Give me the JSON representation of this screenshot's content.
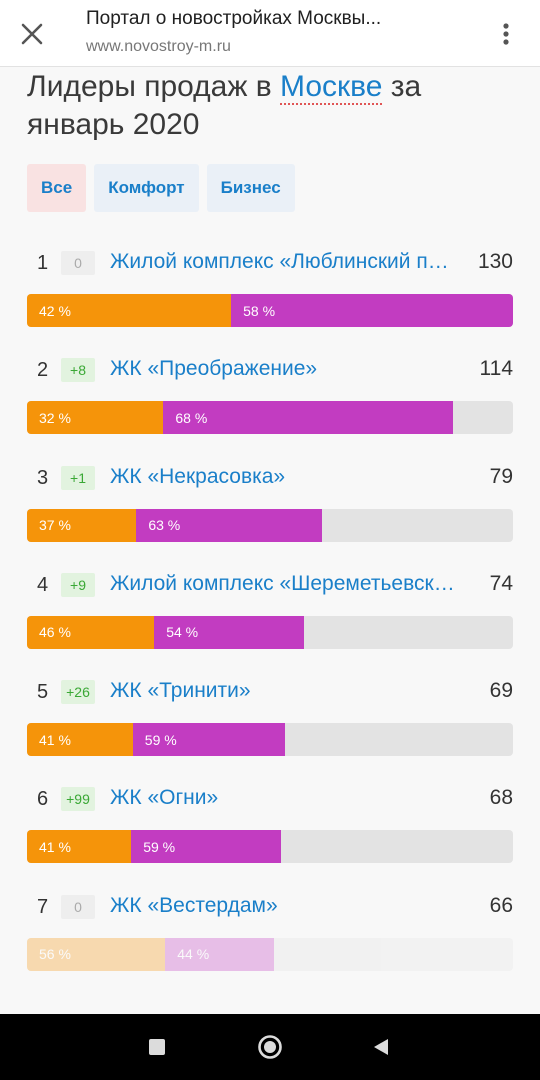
{
  "browser": {
    "title": "Портал о новостройках Москвы...",
    "url": "www.novostroy-m.ru"
  },
  "heading": {
    "prefix": "Лидеры продаж в ",
    "city": "Москве",
    "suffix": " за январь 2020"
  },
  "filters": [
    {
      "label": "Все",
      "active": true
    },
    {
      "label": "Комфорт",
      "active": false
    },
    {
      "label": "Бизнес",
      "active": false
    }
  ],
  "rows": [
    {
      "rank": "1",
      "change": "0",
      "name": "Жилой комплекс «Люблинский парк»",
      "count": "130",
      "share_a": "42 %",
      "share_b": "58 %",
      "fill_fraction": 1.0
    },
    {
      "rank": "2",
      "change": "+8",
      "name": "ЖК «Преображение»",
      "count": "114",
      "share_a": "32 %",
      "share_b": "68 %",
      "fill_fraction": 0.877
    },
    {
      "rank": "3",
      "change": "+1",
      "name": "ЖК «Некрасовка»",
      "count": "79",
      "share_a": "37 %",
      "share_b": "63 %",
      "fill_fraction": 0.608
    },
    {
      "rank": "4",
      "change": "+9",
      "name": "Жилой комплекс «Шереметьевский»",
      "count": "74",
      "share_a": "46 %",
      "share_b": "54 %",
      "fill_fraction": 0.569
    },
    {
      "rank": "5",
      "change": "+26",
      "name": "ЖК «Тринити»",
      "count": "69",
      "share_a": "41 %",
      "share_b": "59 %",
      "fill_fraction": 0.531
    },
    {
      "rank": "6",
      "change": "+99",
      "name": "ЖК «Огни»",
      "count": "68",
      "share_a": "41 %",
      "share_b": "59 %",
      "fill_fraction": 0.523
    },
    {
      "rank": "7",
      "change": "0",
      "name": "ЖК «Вестердам»",
      "count": "66",
      "share_a": "56 %",
      "share_b": "44 %",
      "fill_fraction": 0.508
    }
  ],
  "colors": {
    "accent": "#1a7fc9",
    "share_a": "#f5940a",
    "share_b": "#c23cc1",
    "bar_bg": "#e3e3e3"
  },
  "icons": {
    "close": "close-icon",
    "menu": "more-vert-icon",
    "nav_recents": "square-icon",
    "nav_home": "circle-icon",
    "nav_back": "triangle-back-icon"
  }
}
